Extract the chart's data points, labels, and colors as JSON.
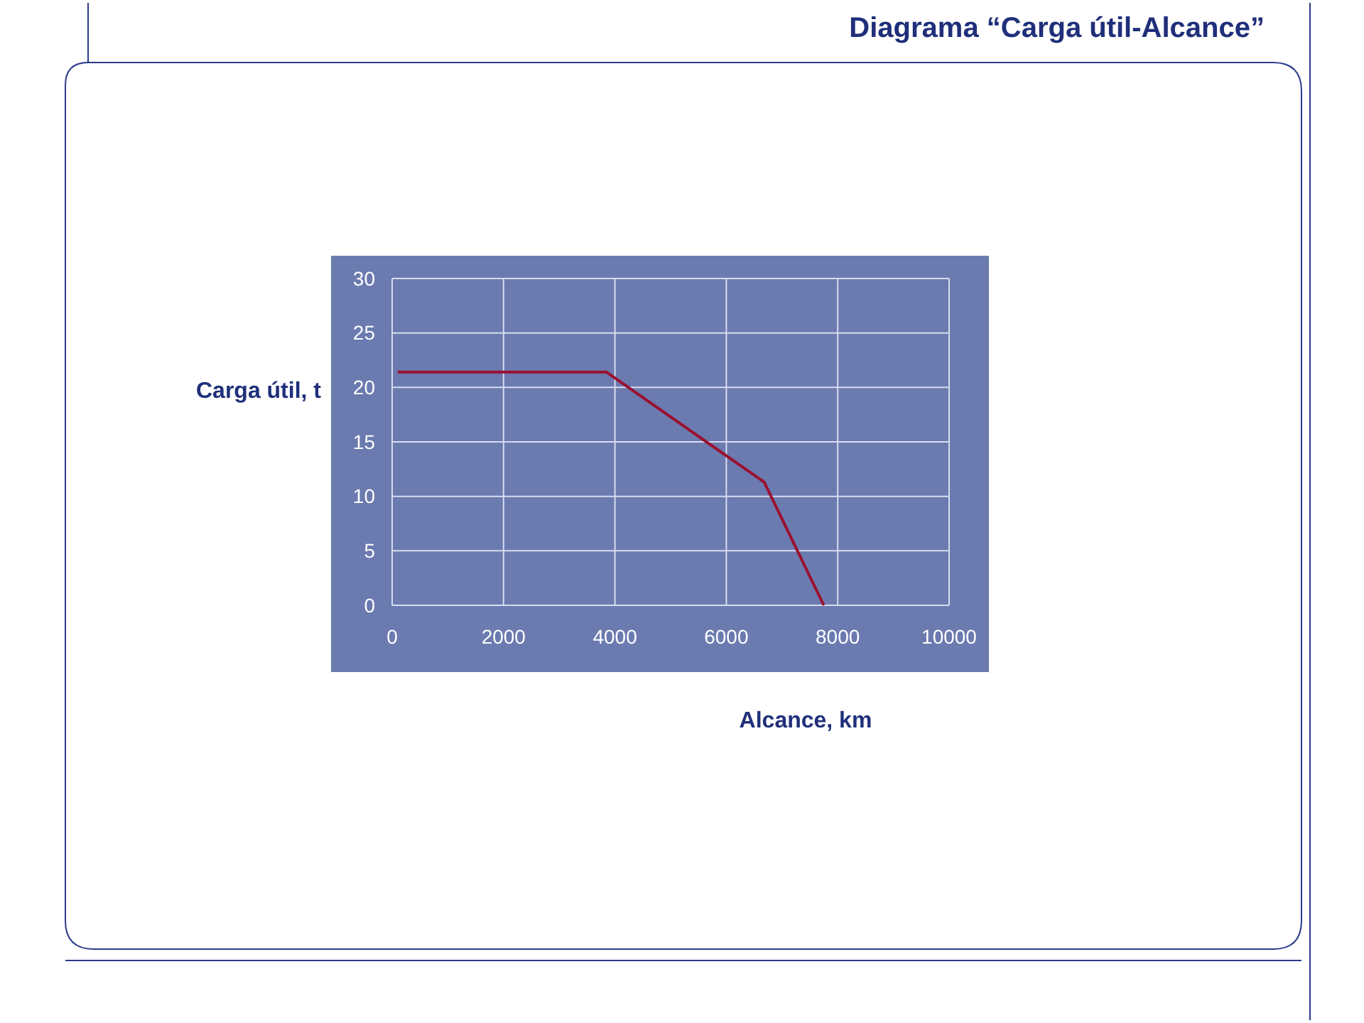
{
  "chart_data": {
    "type": "line",
    "title": "Diagrama “Carga útil-Alcance”",
    "xlabel": "Alcance, km",
    "ylabel": "Carga útil, t",
    "x": [
      100,
      3850,
      6680,
      7750
    ],
    "series": [
      {
        "color": "#9b1030",
        "values": [
          21.4,
          21.4,
          11.3,
          0
        ]
      }
    ],
    "xlim": [
      0,
      10000
    ],
    "xticks": [
      0,
      2000,
      4000,
      6000,
      8000,
      10000
    ],
    "ylim": [
      0,
      30
    ],
    "yticks": [
      0,
      5,
      10,
      15,
      20,
      25,
      30
    ],
    "grid": true,
    "marker": "none",
    "line_style": "solid"
  }
}
